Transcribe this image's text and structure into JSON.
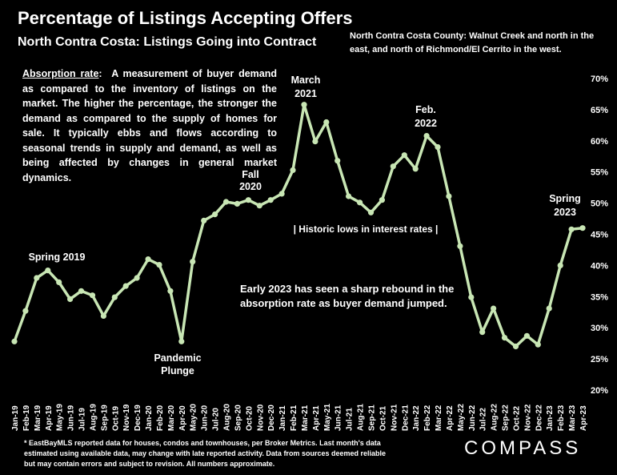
{
  "header": {
    "title": "Percentage of Listings Accepting Offers",
    "subtitle": "North Contra Costa: Listings Going into Contract",
    "region_note": "North Contra Costa County: Walnut Creek and north in the east, and north of Richmond/El Cerrito in the west."
  },
  "definition": {
    "term": "Absorption rate",
    "text": "A measurement of buyer demand as compared to the inventory of listings on the market. The higher the percentage, the stronger the demand as compared to the supply of homes for sale. It typically ebbs and flows according to seasonal trends in supply and demand, as well as being affected by changes in general market dynamics."
  },
  "footnote": "* EastBayMLS reported data for houses, condos and townhouses, per Broker Metrics. Last month's data estimated using available data, may change with late reported activity. Data from sources deemed reliable but may contain errors and subject to revision. All numbers approximate.",
  "logo": "COMPASS",
  "annotations": {
    "spring_2019": "Spring 2019",
    "pandemic_1": "Pandemic",
    "pandemic_2": "Plunge",
    "fall_2020_1": "Fall",
    "fall_2020_2": "2020",
    "march_2021_1": "March",
    "march_2021_2": "2021",
    "feb_2022_1": "Feb.",
    "feb_2022_2": "2022",
    "spring_2023_1": "Spring",
    "spring_2023_2": "2023",
    "historic_lows": "| Historic lows in interest rates |",
    "rebound_1": "Early 2023 has seen a sharp rebound in the",
    "rebound_2": "absorption rate as buyer demand jumped."
  },
  "colors": {
    "background": "#000000",
    "line": "#c8e6b4",
    "text": "#ffffff"
  },
  "chart_data": {
    "type": "line",
    "title": "Percentage of Listings Accepting Offers",
    "subtitle": "North Contra Costa: Listings Going into Contract",
    "xlabel": "",
    "ylabel": "",
    "ylim": [
      20,
      70
    ],
    "yticks": [
      "20%",
      "25%",
      "30%",
      "35%",
      "40%",
      "45%",
      "50%",
      "55%",
      "60%",
      "65%",
      "70%"
    ],
    "y_axis_position": "right",
    "grid": false,
    "legend": "none",
    "categories": [
      "Jan-19",
      "Feb-19",
      "Mar-19",
      "Apr-19",
      "May-19",
      "Jun-19",
      "Jul-19",
      "Aug-19",
      "Sep-19",
      "Oct-19",
      "Nov-19",
      "Dec-19",
      "Jan-20",
      "Feb-20",
      "Mar-20",
      "Apr-20",
      "May-20",
      "Jun-20",
      "Jul-20",
      "Aug-20",
      "Sep-20",
      "Oct-20",
      "Nov-20",
      "Dec-20",
      "Jan-21",
      "Feb-21",
      "Mar-21",
      "Apr-21",
      "May-21",
      "Jun-21",
      "Jul-21",
      "Aug-21",
      "Sep-21",
      "Oct-21",
      "Nov-21",
      "Dec-21",
      "Jan-22",
      "Feb-22",
      "Mar-22",
      "Apr-22",
      "May-22",
      "Jun-22",
      "Jul-22",
      "Aug-22",
      "Sep-22",
      "Oct-22",
      "Nov-22",
      "Dec-22",
      "Jan-23",
      "Feb-23",
      "Mar-23",
      "Apr-23"
    ],
    "values": [
      27.8,
      32.7,
      38.0,
      39.2,
      37.3,
      34.6,
      35.9,
      35.2,
      31.9,
      34.9,
      36.7,
      38.0,
      41.0,
      40.1,
      35.9,
      27.8,
      40.6,
      47.2,
      48.2,
      50.2,
      49.9,
      50.5,
      49.6,
      50.5,
      51.5,
      55.3,
      65.8,
      59.9,
      63.0,
      56.8,
      51.1,
      50.1,
      48.5,
      50.5,
      55.9,
      57.7,
      55.5,
      60.8,
      59.0,
      51.1,
      43.1,
      34.9,
      29.3,
      33.1,
      28.4,
      27.0,
      28.7,
      27.3,
      33.1,
      40.0,
      45.8,
      46.0
    ]
  }
}
